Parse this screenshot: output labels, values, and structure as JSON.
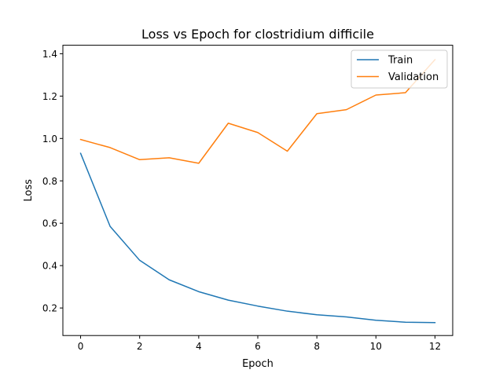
{
  "chart_data": {
    "type": "line",
    "title": "Loss vs Epoch for clostridium difficile",
    "xlabel": "Epoch",
    "ylabel": "Loss",
    "xlim": [
      -0.6,
      12.6
    ],
    "ylim": [
      0.07,
      1.44
    ],
    "xticks": [
      0,
      2,
      4,
      6,
      8,
      10,
      12
    ],
    "yticks": [
      0.2,
      0.4,
      0.6,
      0.8,
      1.0,
      1.2,
      1.4
    ],
    "xtick_labels": [
      "0",
      "2",
      "4",
      "6",
      "8",
      "10",
      "12"
    ],
    "ytick_labels": [
      "0.2",
      "0.4",
      "0.6",
      "0.8",
      "1.0",
      "1.2",
      "1.4"
    ],
    "grid": false,
    "legend_position": "top-right",
    "x": [
      0,
      1,
      2,
      3,
      4,
      5,
      6,
      7,
      8,
      9,
      10,
      11,
      12
    ],
    "series": [
      {
        "name": "Train",
        "color": "#1f77b4",
        "values": [
          0.93,
          0.585,
          0.425,
          0.333,
          0.277,
          0.237,
          0.209,
          0.185,
          0.168,
          0.158,
          0.142,
          0.133,
          0.131
        ]
      },
      {
        "name": "Validation",
        "color": "#ff7f0e",
        "values": [
          0.995,
          0.957,
          0.9,
          0.909,
          0.883,
          1.072,
          1.028,
          0.94,
          1.117,
          1.136,
          1.205,
          1.216,
          1.372
        ]
      }
    ]
  }
}
